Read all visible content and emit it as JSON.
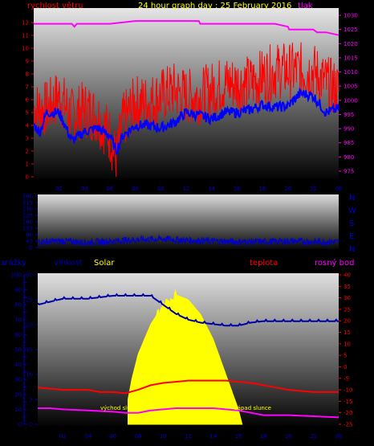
{
  "header": {
    "title": "24 hour graph day : 25 February 2016",
    "left_label": "rychlost větru",
    "right_label": "tlak"
  },
  "panel2": {
    "compass": [
      "N",
      "W",
      "S",
      "E",
      "N"
    ]
  },
  "panel3": {
    "labels": {
      "precip": "srážky",
      "humidity": "vlhkost",
      "solar": "Solar",
      "temp": "teplota",
      "dew": "rosný bod",
      "sunrise": "východ slunce",
      "sunset": "západ slunce"
    }
  },
  "x_ticks": [
    "02",
    "04",
    "06",
    "08",
    "10",
    "12",
    "14",
    "16",
    "18",
    "20",
    "22",
    "00"
  ],
  "colors": {
    "wind": "#ff0000",
    "pressure": "#ff00ff",
    "direction": "#0000cc",
    "humidity": "#0000aa",
    "temp": "#ff0000",
    "dew": "#ff00ff",
    "solar": "#ffff00"
  },
  "chart_data": [
    {
      "type": "line",
      "name": "wind_pressure",
      "x_range_hours": [
        0,
        24
      ],
      "y_left": {
        "label": "rychlost větru",
        "ylim": [
          0,
          13
        ],
        "ticks": [
          0,
          1,
          2,
          3,
          4,
          5,
          6,
          7,
          8,
          9,
          10,
          11,
          12
        ]
      },
      "y_right": {
        "label": "tlak",
        "ylim": [
          973,
          1032
        ],
        "ticks": [
          975,
          980,
          985,
          990,
          995,
          1000,
          1005,
          1010,
          1015,
          1020,
          1025,
          1030
        ]
      },
      "series": [
        {
          "name": "gust",
          "axis": "left",
          "color": "#ff0000",
          "x": [
            0,
            1,
            2,
            3,
            4,
            5,
            6,
            6.5,
            7,
            8,
            9,
            10,
            11,
            12,
            13,
            14,
            15,
            16,
            17,
            18,
            19,
            20,
            21,
            22,
            23,
            24
          ],
          "y": [
            5,
            5,
            6,
            4.5,
            5,
            4.5,
            3,
            1,
            4,
            5.5,
            5.5,
            6,
            6.5,
            6,
            6,
            6.5,
            7,
            7,
            7,
            7.5,
            8,
            8,
            8,
            8,
            7,
            6.5
          ]
        },
        {
          "name": "average",
          "axis": "left",
          "color": "#0000ff",
          "x": [
            0,
            0.5,
            1,
            2,
            3,
            4,
            5,
            6,
            6.5,
            7,
            8,
            9,
            10,
            11,
            12,
            13,
            14,
            15,
            16,
            17,
            18,
            19,
            20,
            21,
            22,
            23,
            24
          ],
          "y": [
            4,
            3.5,
            5,
            5,
            2.8,
            3.5,
            3.8,
            3.2,
            2,
            3.2,
            4,
            4,
            3.8,
            4.2,
            5,
            4.8,
            4.5,
            5,
            5,
            5.2,
            5.6,
            5.4,
            5.5,
            6.5,
            6.3,
            5,
            5.3
          ]
        },
        {
          "name": "pressure",
          "axis": "right",
          "color": "#ff00ff",
          "x": [
            0,
            3,
            3.2,
            3.4,
            6,
            7,
            8,
            13,
            13.1,
            19,
            20,
            20.1,
            22,
            22.3,
            23,
            24
          ],
          "y": [
            1027,
            1027,
            1026,
            1027,
            1027,
            1027.5,
            1028,
            1028,
            1027,
            1027,
            1026,
            1025,
            1025,
            1024,
            1024,
            1023
          ]
        }
      ]
    },
    {
      "type": "line",
      "name": "wind_direction",
      "x_range_hours": [
        0,
        24
      ],
      "y": {
        "ylim": [
          0,
          360
        ],
        "ticks": [
          0,
          45,
          90,
          135,
          180,
          225,
          270,
          315,
          360
        ]
      },
      "series": [
        {
          "name": "direction",
          "color": "#0000cc",
          "x": [
            0,
            2,
            4,
            6,
            8,
            10,
            12,
            14,
            16,
            18,
            20,
            22,
            24
          ],
          "y": [
            40,
            45,
            35,
            45,
            55,
            60,
            50,
            45,
            40,
            40,
            45,
            40,
            40
          ]
        }
      ]
    },
    {
      "type": "line",
      "name": "temp_humidity_solar",
      "x_range_hours": [
        0,
        24
      ],
      "y_left_precip": {
        "label": "srážky",
        "ylim": [
          0,
          100
        ],
        "ticks": [
          0,
          5,
          10,
          15,
          20,
          25,
          30,
          35,
          40,
          45,
          50,
          55,
          60,
          65,
          70,
          75,
          80,
          85,
          90,
          95,
          100
        ]
      },
      "y_left_humidity": {
        "label": "vlhkost",
        "ylim": [
          0,
          30
        ],
        "ticks": [
          0,
          5,
          10,
          15,
          20,
          25,
          30
        ]
      },
      "y_right": {
        "label": "teplota",
        "ylim": [
          -25,
          40
        ],
        "ticks": [
          -25,
          -20,
          -15,
          -10,
          -5,
          0,
          5,
          10,
          15,
          20,
          25,
          30,
          35,
          40
        ]
      },
      "series": [
        {
          "name": "humidity",
          "color": "#0000aa",
          "x": [
            0,
            1,
            2,
            4,
            6,
            8,
            9,
            10,
            11,
            12,
            13,
            14,
            15,
            16,
            17,
            18,
            20,
            22,
            24
          ],
          "y": [
            80,
            82,
            84,
            84,
            86,
            86,
            86,
            80,
            74,
            70,
            68,
            67,
            66,
            66,
            68,
            69,
            69,
            69,
            69
          ]
        },
        {
          "name": "temp",
          "color": "#ff0000",
          "x": [
            0,
            1,
            2,
            3,
            4,
            5,
            6,
            7,
            8,
            9,
            10,
            11,
            12,
            13,
            14,
            15,
            16,
            17,
            18,
            19,
            20,
            21,
            22,
            23,
            24
          ],
          "y": [
            -9,
            -9.5,
            -10,
            -10,
            -10,
            -11,
            -11,
            -11.5,
            -10,
            -8,
            -7,
            -6.5,
            -6,
            -6,
            -6,
            -6,
            -6.5,
            -7,
            -8,
            -9,
            -10,
            -10.5,
            -11,
            -11,
            -11
          ]
        },
        {
          "name": "dew_point",
          "color": "#ff00ff",
          "x": [
            0,
            1,
            2,
            4,
            6,
            7,
            8,
            9,
            10,
            11,
            12,
            13,
            14,
            15,
            16,
            17,
            18,
            20,
            22,
            24
          ],
          "y": [
            -18,
            -18,
            -18.5,
            -19,
            -19.5,
            -20,
            -20,
            -19,
            -18.5,
            -18,
            -18,
            -18,
            -18,
            -18.5,
            -19,
            -20,
            -21,
            -21,
            -21.5,
            -22
          ]
        },
        {
          "name": "solar",
          "color": "#ffff00",
          "x": [
            7.2,
            7.5,
            8,
            9,
            10,
            11,
            12,
            13,
            14,
            15,
            16,
            16.3
          ],
          "y": [
            5,
            9,
            14,
            20,
            24,
            26,
            25,
            22,
            17,
            10,
            3,
            0
          ]
        }
      ]
    }
  ]
}
